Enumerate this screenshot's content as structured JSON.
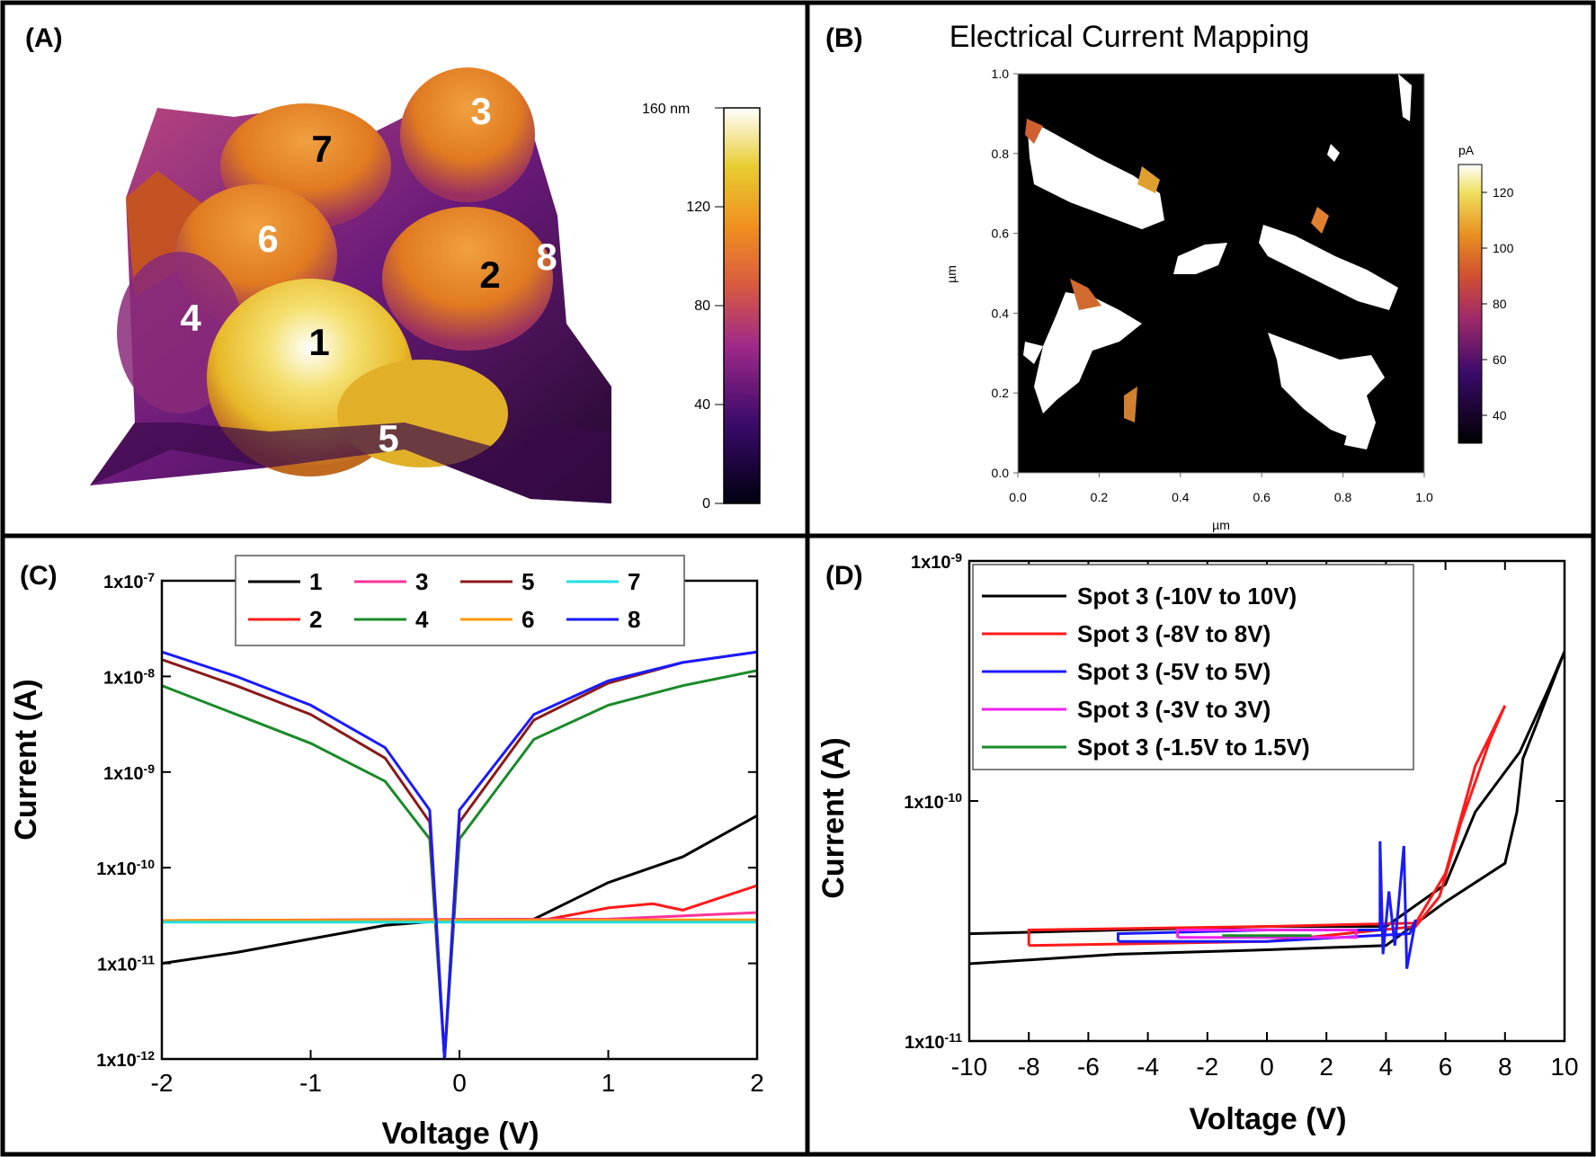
{
  "panel_labels": {
    "a": "(A)",
    "b": "(B)",
    "c": "(C)",
    "d": "(D)"
  },
  "colors": {
    "black": "#000000",
    "red": "#ff1a1a",
    "pink": "#ff3399",
    "maroon": "#8b1a1a",
    "green": "#1a8a2a",
    "orange": "#ff9900",
    "cyan": "#22e0e0",
    "blue": "#1a1aff",
    "magenta": "#ee22ee"
  },
  "chart_data": [
    {
      "id": "A",
      "type": "surface3d",
      "title": "",
      "colorbar": {
        "unit_label": "160 nm",
        "ticks": [
          "120",
          "80",
          "40",
          "0"
        ],
        "range": [
          0,
          160
        ]
      },
      "spots": [
        {
          "label": "1",
          "color": "black"
        },
        {
          "label": "2",
          "color": "black"
        },
        {
          "label": "3",
          "color": "white"
        },
        {
          "label": "4",
          "color": "white"
        },
        {
          "label": "5",
          "color": "white"
        },
        {
          "label": "6",
          "color": "white"
        },
        {
          "label": "7",
          "color": "black"
        },
        {
          "label": "8",
          "color": "white"
        }
      ]
    },
    {
      "id": "B",
      "type": "heatmap",
      "title": "Electrical Current Mapping",
      "xlabel": "µm",
      "ylabel": "µm",
      "xticks": [
        "0.0",
        "0.2",
        "0.4",
        "0.6",
        "0.8",
        "1.0"
      ],
      "yticks": [
        "0.0",
        "0.2",
        "0.4",
        "0.6",
        "0.8",
        "1.0"
      ],
      "xlim": [
        0,
        1
      ],
      "ylim": [
        0,
        1
      ],
      "colorbar": {
        "unit": "pA",
        "ticks": [
          "120",
          "100",
          "80",
          "60",
          "40"
        ],
        "range": [
          30,
          130
        ]
      }
    },
    {
      "id": "C",
      "type": "line",
      "yscale": "log",
      "xlabel": "Voltage (V)",
      "ylabel": "Current (A)",
      "xlim": [
        -2,
        2
      ],
      "ylim": [
        1e-12,
        1e-07
      ],
      "xticks": [
        "-2",
        "-1",
        "0",
        "1",
        "2"
      ],
      "yticks": [
        "1x10-7",
        "1x10-8",
        "1x10-9",
        "1x10-10",
        "1x10-11",
        "1x10-12"
      ],
      "legend": [
        "1",
        "3",
        "5",
        "7",
        "2",
        "4",
        "6",
        "8"
      ],
      "series": [
        {
          "name": "1",
          "color": "black",
          "points": [
            [
              -2,
              1e-11
            ],
            [
              -1.5,
              1.3e-11
            ],
            [
              -1,
              1.8e-11
            ],
            [
              -0.5,
              2.5e-11
            ],
            [
              -0.1,
              2.8e-11
            ],
            [
              0.5,
              2.9e-11
            ],
            [
              1,
              7e-11
            ],
            [
              1.5,
              1.3e-10
            ],
            [
              2,
              3.5e-10
            ]
          ]
        },
        {
          "name": "2",
          "color": "red",
          "points": [
            [
              -2,
              2.8e-11
            ],
            [
              0.6,
              2.9e-11
            ],
            [
              1,
              3.8e-11
            ],
            [
              1.3,
              4.2e-11
            ],
            [
              1.5,
              3.6e-11
            ],
            [
              2,
              6.5e-11
            ]
          ]
        },
        {
          "name": "3",
          "color": "pink",
          "points": [
            [
              -2,
              2.8e-11
            ],
            [
              1,
              2.9e-11
            ],
            [
              2,
              3.4e-11
            ]
          ]
        },
        {
          "name": "4",
          "color": "green",
          "points": [
            [
              -2,
              8e-09
            ],
            [
              -1.5,
              4e-09
            ],
            [
              -1,
              2e-09
            ],
            [
              -0.5,
              8e-10
            ],
            [
              -0.2,
              2e-10
            ],
            [
              -0.1,
              1e-12
            ],
            [
              0,
              2e-10
            ],
            [
              0.5,
              2.2e-09
            ],
            [
              1,
              5e-09
            ],
            [
              1.5,
              8e-09
            ],
            [
              2,
              1.15e-08
            ]
          ]
        },
        {
          "name": "5",
          "color": "maroon",
          "points": [
            [
              -2,
              1.5e-08
            ],
            [
              -1.5,
              8e-09
            ],
            [
              -1,
              4e-09
            ],
            [
              -0.5,
              1.4e-09
            ],
            [
              -0.2,
              3e-10
            ],
            [
              -0.1,
              1e-12
            ],
            [
              0,
              3e-10
            ],
            [
              0.5,
              3.5e-09
            ],
            [
              1,
              8.5e-09
            ],
            [
              1.5,
              1.4e-08
            ],
            [
              2,
              1.8e-08
            ]
          ]
        },
        {
          "name": "6",
          "color": "orange",
          "points": [
            [
              -2,
              2.8e-11
            ],
            [
              2,
              2.85e-11
            ]
          ]
        },
        {
          "name": "7",
          "color": "cyan",
          "points": [
            [
              -2,
              2.7e-11
            ],
            [
              2,
              2.7e-11
            ]
          ]
        },
        {
          "name": "8",
          "color": "blue",
          "points": [
            [
              -2,
              1.8e-08
            ],
            [
              -1.5,
              1e-08
            ],
            [
              -1,
              5e-09
            ],
            [
              -0.5,
              1.8e-09
            ],
            [
              -0.2,
              4e-10
            ],
            [
              -0.1,
              1e-12
            ],
            [
              0,
              4e-10
            ],
            [
              0.5,
              4e-09
            ],
            [
              1,
              9e-09
            ],
            [
              1.5,
              1.4e-08
            ],
            [
              2,
              1.8e-08
            ]
          ]
        }
      ]
    },
    {
      "id": "D",
      "type": "line",
      "yscale": "log",
      "xlabel": "Voltage (V)",
      "ylabel": "Current (A)",
      "xlim": [
        -10,
        10
      ],
      "ylim": [
        1e-11,
        1e-09
      ],
      "xticks": [
        "-10",
        "-8",
        "-6",
        "-4",
        "-2",
        "0",
        "2",
        "4",
        "6",
        "8",
        "10"
      ],
      "yticks": [
        "1x10-9",
        "1x10-10",
        "1x10-11"
      ],
      "legend": [
        "Spot 3 (-10V to 10V)",
        "Spot 3 (-8V to 8V)",
        "Spot 3 (-5V to 5V)",
        "Spot 3 (-3V to 3V)",
        "Spot 3 (-1.5V to 1.5V)"
      ],
      "series": [
        {
          "name": "Spot 3 (-10V to 10V)",
          "color": "black",
          "points": [
            [
              -10,
              2.8e-11
            ],
            [
              -5,
              2.9e-11
            ],
            [
              0,
              3e-11
            ],
            [
              4,
              3e-11
            ],
            [
              6,
              4.5e-11
            ],
            [
              7,
              9e-11
            ],
            [
              8.5,
              1.6e-10
            ],
            [
              9.5,
              3e-10
            ],
            [
              10,
              4.2e-10
            ],
            [
              9,
              2e-10
            ],
            [
              8.6,
              1.5e-10
            ],
            [
              8.4,
              9e-11
            ],
            [
              8,
              5.5e-11
            ],
            [
              6,
              3.8e-11
            ],
            [
              4,
              2.5e-11
            ],
            [
              0,
              2.4e-11
            ],
            [
              -5,
              2.3e-11
            ],
            [
              -10,
              2.1e-11
            ]
          ]
        },
        {
          "name": "Spot 3 (-8V to 8V)",
          "color": "red",
          "points": [
            [
              -8,
              2.5e-11
            ],
            [
              -8,
              2.9e-11
            ],
            [
              0,
              3e-11
            ],
            [
              5,
              3.1e-11
            ],
            [
              6,
              5e-11
            ],
            [
              7,
              1.4e-10
            ],
            [
              8,
              2.5e-10
            ],
            [
              7.5,
              1.8e-10
            ],
            [
              6.5,
              8e-11
            ],
            [
              5.8,
              4e-11
            ],
            [
              5,
              3e-11
            ],
            [
              0,
              2.6e-11
            ],
            [
              -8,
              2.5e-11
            ]
          ]
        },
        {
          "name": "Spot 3 (-5V to 5V)",
          "color": "blue",
          "points": [
            [
              -5,
              2.6e-11
            ],
            [
              -5,
              2.8e-11
            ],
            [
              0,
              2.9e-11
            ],
            [
              3.8,
              2.9e-11
            ],
            [
              3.8,
              6.8e-11
            ],
            [
              3.9,
              2.3e-11
            ],
            [
              4.1,
              4.2e-11
            ],
            [
              4.3,
              2.5e-11
            ],
            [
              4.6,
              6.5e-11
            ],
            [
              4.7,
              2e-11
            ],
            [
              5,
              3.2e-11
            ],
            [
              4.8,
              2.8e-11
            ],
            [
              0,
              2.6e-11
            ],
            [
              -5,
              2.6e-11
            ]
          ]
        },
        {
          "name": "Spot 3 (-3V to 3V)",
          "color": "magenta",
          "points": [
            [
              -3,
              2.7e-11
            ],
            [
              -3,
              2.9e-11
            ],
            [
              3,
              2.9e-11
            ],
            [
              3,
              2.7e-11
            ],
            [
              -3,
              2.7e-11
            ]
          ]
        },
        {
          "name": "Spot 3 (-1.5V to 1.5V)",
          "color": "green",
          "points": [
            [
              -1.5,
              2.75e-11
            ],
            [
              1.5,
              2.75e-11
            ]
          ]
        }
      ]
    }
  ]
}
